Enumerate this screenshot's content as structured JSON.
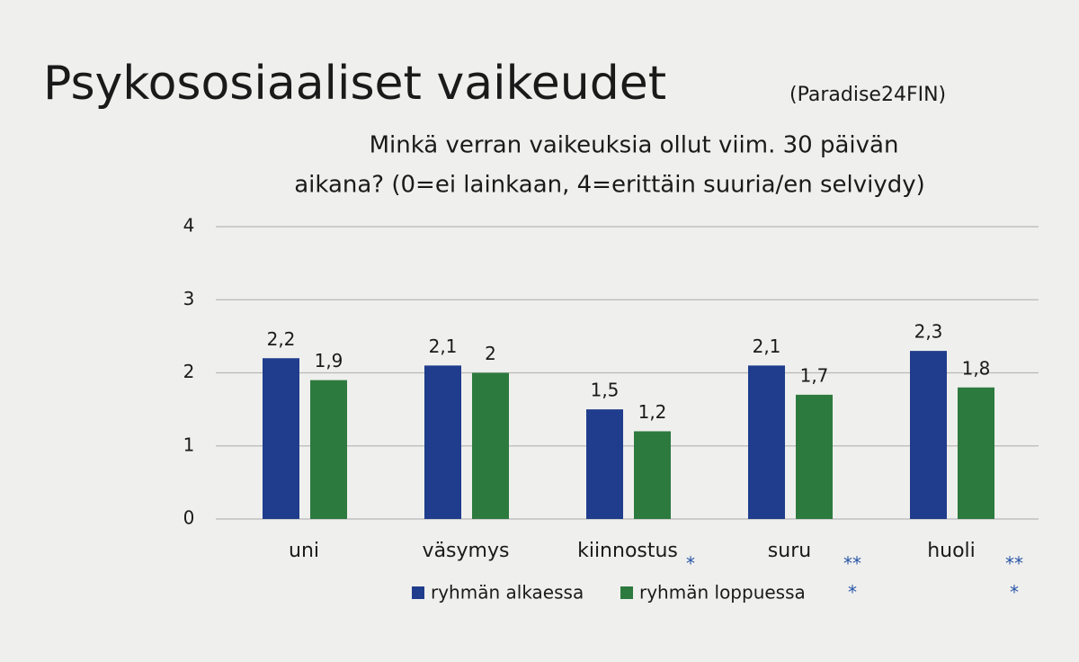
{
  "chart_data": {
    "type": "bar",
    "title": "Psykososiaaliset vaikeudet",
    "source": "(Paradise24FIN)",
    "subtitle_lines": [
      "Minkä verran vaikeuksia ollut viim. 30 päivän",
      "aikana? (0=ei lainkaan, 4=erittäin suuria/en selviydy)"
    ],
    "categories": [
      "uni",
      "väsymys",
      "kiinnostus",
      "suru",
      "huoli"
    ],
    "series": [
      {
        "name": "ryhmän alkaessa",
        "color": "#1f3d8c",
        "values": [
          2.2,
          2.1,
          1.5,
          2.1,
          2.3
        ],
        "value_labels": [
          "2,2",
          "2,1",
          "1,5",
          "2,1",
          "2,3"
        ]
      },
      {
        "name": "ryhmän loppuessa",
        "color": "#2d7a3e",
        "values": [
          1.9,
          2,
          1.2,
          1.7,
          1.8
        ],
        "value_labels": [
          "1,9",
          "2",
          "1,2",
          "1,7",
          "1,8"
        ]
      }
    ],
    "significance": [
      null,
      null,
      [
        "*"
      ],
      [
        "**",
        "*"
      ],
      [
        "**",
        "*"
      ]
    ],
    "significance_color": "#2a56a8",
    "ylim": [
      0,
      4
    ],
    "yticks": [
      0,
      1,
      2,
      3,
      4
    ],
    "grid": true,
    "legend": "bottom"
  }
}
